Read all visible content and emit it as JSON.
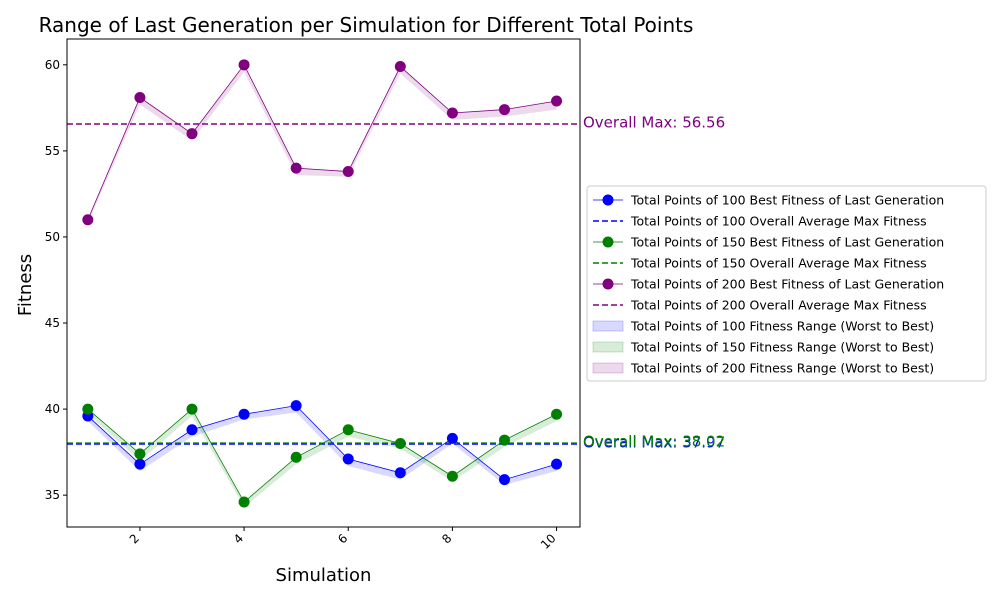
{
  "chart_data": {
    "type": "line",
    "title": "Range of Last Generation per Simulation for Different Total Points",
    "xlabel": "Simulation",
    "ylabel": "Fitness",
    "xlim": [
      0.6,
      10.45
    ],
    "ylim": [
      33.15,
      61.5
    ],
    "x": [
      1,
      2,
      3,
      4,
      5,
      6,
      7,
      8,
      9,
      10
    ],
    "xticks": [
      2,
      4,
      6,
      8,
      10
    ],
    "yticks": [
      35,
      40,
      45,
      50,
      55,
      60
    ],
    "grid": false,
    "legend_placement": "center-right-outside",
    "series": [
      {
        "name": "Total Points of 100 Best Fitness of Last Generation",
        "color": "#0000ff",
        "best": [
          39.6,
          36.8,
          38.8,
          39.7,
          40.2,
          37.1,
          36.3,
          38.3,
          35.9,
          36.8
        ],
        "worst": [
          39.3,
          36.4,
          38.4,
          39.4,
          39.8,
          36.7,
          35.9,
          38.0,
          35.6,
          36.4
        ],
        "avg_name": "Total Points of 100 Overall Average Max Fitness",
        "avg_max": 37.97,
        "avg_label": "Overall Max: 37.97",
        "range_name": "Total Points of 100 Fitness Range (Worst to Best)"
      },
      {
        "name": "Total Points of 150 Best Fitness of Last Generation",
        "color": "#008000",
        "best": [
          40.0,
          37.4,
          40.0,
          34.6,
          37.2,
          38.8,
          38.0,
          36.1,
          38.2,
          39.7
        ],
        "worst": [
          39.7,
          37.0,
          39.6,
          34.3,
          36.8,
          38.4,
          37.7,
          35.8,
          37.8,
          39.3
        ],
        "avg_name": "Total Points of 150 Overall Average Max Fitness",
        "avg_max": 38.02,
        "avg_label": "Overall Max: 38.02",
        "range_name": "Total Points of 150 Fitness Range (Worst to Best)"
      },
      {
        "name": "Total Points of 200 Best Fitness of Last Generation",
        "color": "#800080",
        "best": [
          51.0,
          58.1,
          56.0,
          60.0,
          54.0,
          53.8,
          59.9,
          57.2,
          57.4,
          57.9
        ],
        "worst": [
          50.8,
          57.7,
          55.6,
          59.6,
          53.6,
          53.5,
          59.5,
          56.8,
          57.0,
          57.4
        ],
        "avg_name": "Total Points of 200 Overall Average Max Fitness",
        "avg_max": 56.56,
        "avg_label": "Overall Max: 56.56",
        "range_name": "Total Points of 200 Fitness Range (Worst to Best)"
      }
    ]
  }
}
